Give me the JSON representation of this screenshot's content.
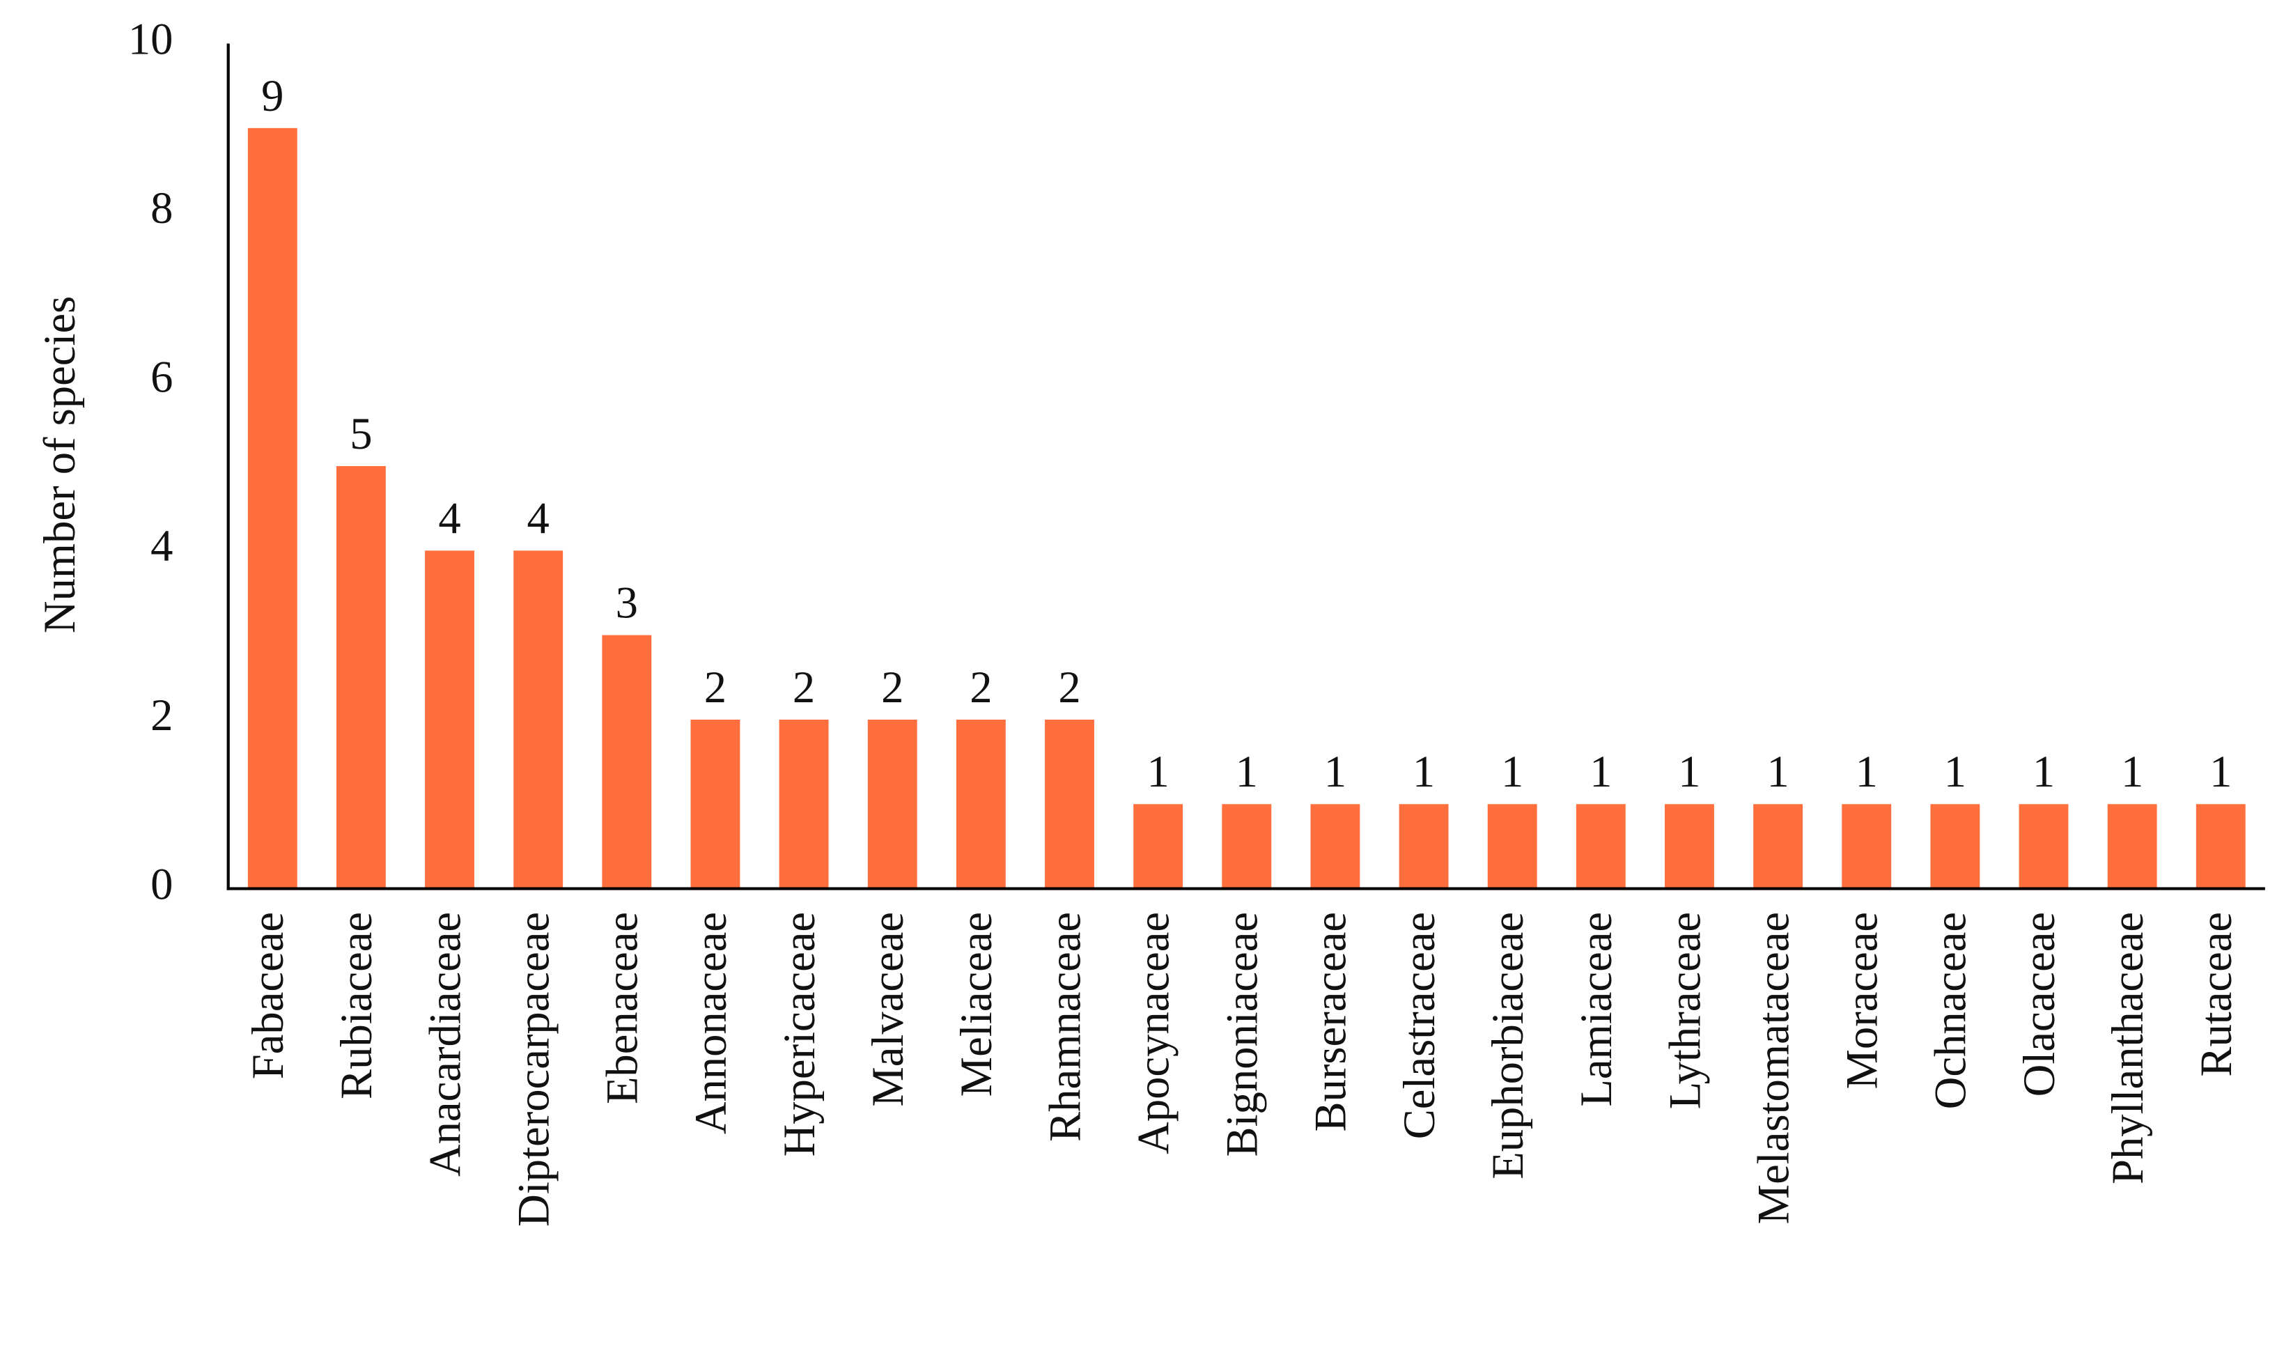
{
  "chart_data": {
    "type": "bar",
    "y_label": "Number of species",
    "categories": [
      "Fabaceae",
      "Rubiaceae",
      "Anacardiaceae",
      "Dipterocarpaceae",
      "Ebenaceae",
      "Annonaceae",
      "Hypericaceae",
      "Malvaceae",
      "Meliaceae",
      "Rhamnaceae",
      "Apocynaceae",
      "Bignoniaceae",
      "Burseraceae",
      "Celastraceae",
      "Euphorbiaceae",
      "Lamiaceae",
      "Lythraceae",
      "Melastomataceae",
      "Moraceae",
      "Ochnaceae",
      "Olacaceae",
      "Phyllanthaceae",
      "Rutaceae"
    ],
    "values": [
      9,
      5,
      4,
      4,
      3,
      2,
      2,
      2,
      2,
      2,
      1,
      1,
      1,
      1,
      1,
      1,
      1,
      1,
      1,
      1,
      1,
      1,
      1
    ],
    "color": "#ff6e3c",
    "ylim": [
      0,
      10
    ],
    "yticks": [
      0,
      2,
      4,
      6,
      8,
      10
    ],
    "grid": false,
    "data_labels": true
  }
}
